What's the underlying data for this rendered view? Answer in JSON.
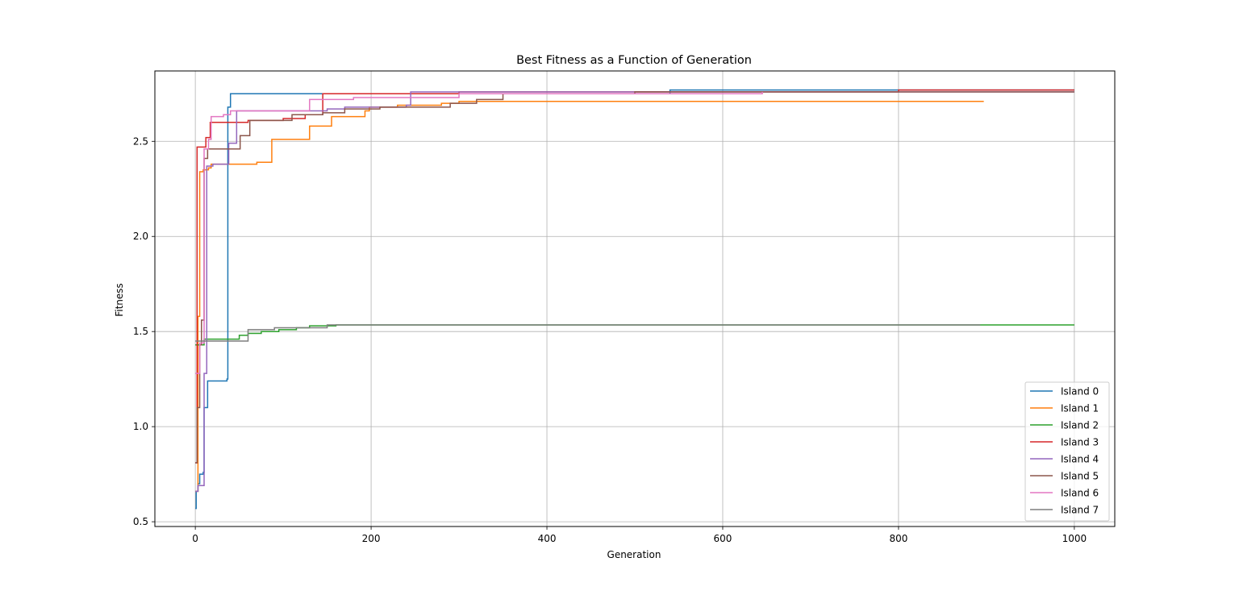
{
  "chart_data": {
    "type": "line",
    "title": "Best Fitness as a Function of Generation",
    "xlabel": "Generation",
    "ylabel": "Fitness",
    "xlim": [
      -46,
      1046
    ],
    "ylim": [
      0.475,
      2.87
    ],
    "xticks": [
      0,
      200,
      400,
      600,
      800,
      1000
    ],
    "yticks": [
      0.5,
      1.0,
      1.5,
      2.0,
      2.5
    ],
    "ytick_labels": [
      "0.5",
      "1.0",
      "1.5",
      "2.0",
      "2.5"
    ],
    "grid": true,
    "legend_position": "lower-right",
    "step": true,
    "series": [
      {
        "name": "Island 0",
        "color": "#1f77b4",
        "points": [
          [
            0,
            0.57
          ],
          [
            1,
            0.66
          ],
          [
            3,
            0.7
          ],
          [
            5,
            0.75
          ],
          [
            9,
            0.76
          ],
          [
            10,
            1.1
          ],
          [
            14,
            1.24
          ],
          [
            36,
            1.25
          ],
          [
            37,
            2.68
          ],
          [
            40,
            2.75
          ],
          [
            120,
            2.75
          ],
          [
            540,
            2.77
          ],
          [
            1000,
            2.77
          ]
        ]
      },
      {
        "name": "Island 1",
        "color": "#ff7f0e",
        "points": [
          [
            0,
            0.66
          ],
          [
            3,
            1.58
          ],
          [
            5,
            2.34
          ],
          [
            9,
            2.35
          ],
          [
            15,
            2.36
          ],
          [
            18,
            2.38
          ],
          [
            70,
            2.39
          ],
          [
            87,
            2.51
          ],
          [
            128,
            2.51
          ],
          [
            130,
            2.58
          ],
          [
            155,
            2.63
          ],
          [
            193,
            2.66
          ],
          [
            198,
            2.68
          ],
          [
            230,
            2.69
          ],
          [
            280,
            2.7
          ],
          [
            300,
            2.71
          ],
          [
            897,
            2.71
          ]
        ]
      },
      {
        "name": "Island 2",
        "color": "#2ca02c",
        "points": [
          [
            0,
            1.43
          ],
          [
            10,
            1.46
          ],
          [
            50,
            1.48
          ],
          [
            60,
            1.49
          ],
          [
            75,
            1.5
          ],
          [
            95,
            1.51
          ],
          [
            115,
            1.52
          ],
          [
            130,
            1.53
          ],
          [
            160,
            1.535
          ],
          [
            1000,
            1.535
          ]
        ]
      },
      {
        "name": "Island 3",
        "color": "#d62728",
        "points": [
          [
            0,
            0.81
          ],
          [
            2,
            2.47
          ],
          [
            10,
            2.47
          ],
          [
            12,
            2.52
          ],
          [
            17,
            2.6
          ],
          [
            60,
            2.61
          ],
          [
            100,
            2.62
          ],
          [
            125,
            2.64
          ],
          [
            145,
            2.75
          ],
          [
            200,
            2.75
          ],
          [
            300,
            2.76
          ],
          [
            800,
            2.77
          ],
          [
            1000,
            2.77
          ]
        ]
      },
      {
        "name": "Island 4",
        "color": "#9467bd",
        "points": [
          [
            0,
            0.66
          ],
          [
            3,
            0.69
          ],
          [
            10,
            1.28
          ],
          [
            13,
            2.37
          ],
          [
            20,
            2.38
          ],
          [
            38,
            2.49
          ],
          [
            47,
            2.66
          ],
          [
            150,
            2.67
          ],
          [
            170,
            2.68
          ],
          [
            240,
            2.69
          ],
          [
            245,
            2.76
          ],
          [
            1000,
            2.76
          ]
        ]
      },
      {
        "name": "Island 5",
        "color": "#8c564b",
        "points": [
          [
            0,
            0.81
          ],
          [
            2,
            1.1
          ],
          [
            5,
            1.43
          ],
          [
            7,
            1.56
          ],
          [
            10,
            2.41
          ],
          [
            14,
            2.46
          ],
          [
            51,
            2.53
          ],
          [
            62,
            2.61
          ],
          [
            85,
            2.61
          ],
          [
            110,
            2.64
          ],
          [
            145,
            2.65
          ],
          [
            170,
            2.67
          ],
          [
            210,
            2.68
          ],
          [
            290,
            2.7
          ],
          [
            320,
            2.72
          ],
          [
            350,
            2.75
          ],
          [
            500,
            2.76
          ],
          [
            1000,
            2.76
          ]
        ]
      },
      {
        "name": "Island 6",
        "color": "#e377c2",
        "points": [
          [
            0,
            1.28
          ],
          [
            5,
            1.44
          ],
          [
            10,
            2.46
          ],
          [
            15,
            2.51
          ],
          [
            18,
            2.63
          ],
          [
            32,
            2.64
          ],
          [
            40,
            2.66
          ],
          [
            130,
            2.72
          ],
          [
            180,
            2.73
          ],
          [
            300,
            2.75
          ],
          [
            645,
            2.76
          ]
        ]
      },
      {
        "name": "Island 7",
        "color": "#7f7f7f",
        "points": [
          [
            0,
            1.45
          ],
          [
            58,
            1.45
          ],
          [
            60,
            1.51
          ],
          [
            90,
            1.52
          ],
          [
            150,
            1.535
          ],
          [
            893,
            1.535
          ]
        ]
      }
    ]
  }
}
